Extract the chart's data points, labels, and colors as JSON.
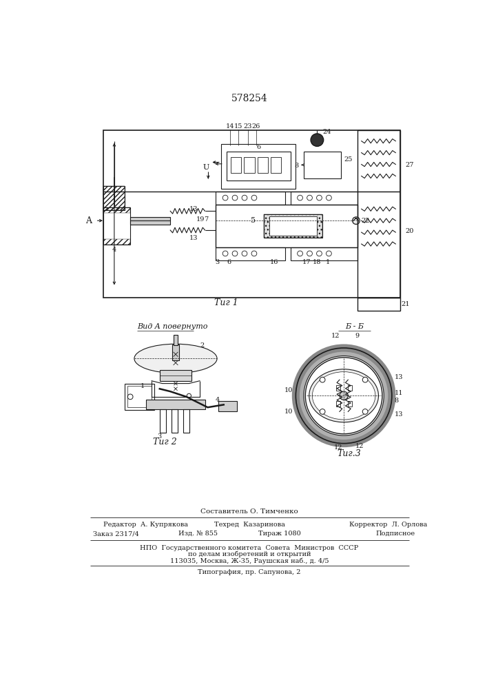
{
  "patent_number": "578254",
  "fig1_label": "Τиг 1",
  "fig2_label": "Τиг 2",
  "fig2_title": "Вид A повернуто",
  "fig3_label": "Τиг.3",
  "fig3_title": "Б - Б",
  "footer_line1": "Составитель О. Тимченко",
  "footer_editor": "Редактор  А. Купрякова",
  "footer_techr": "Техред  Казаринова",
  "footer_corr": "Корректор  Л. Орлова",
  "footer_zakaz": "Заказ 2317/4",
  "footer_izd": "Изд. № 855",
  "footer_tirazh": "Тираж 1080",
  "footer_podp": "Подписное",
  "footer_npo": "НПО  Государственного комитета  Совета  Министров  СССР",
  "footer_dela": "по делам изобретений и открытий",
  "footer_addr": "113035, Москва, Ж-35, Раушская наб., д. 4/5",
  "footer_typo": "Типография, пр. Сапунова, 2",
  "bg_color": "#ffffff",
  "line_color": "#1a1a1a"
}
